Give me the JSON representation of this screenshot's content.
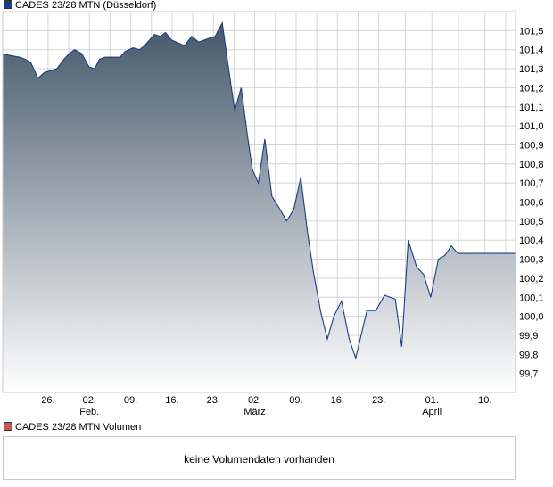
{
  "legend": {
    "series_label": "CADES 23/28 MTN (Düsseldorf)",
    "series_color": "#1a3d8f",
    "volume_label": "CADES 23/28 MTN Volumen",
    "volume_color": "#d45050"
  },
  "volume_panel": {
    "message": "keine Volumendaten vorhanden"
  },
  "chart_data": {
    "type": "area",
    "title": "",
    "xlabel": "",
    "ylabel": "",
    "ylim": [
      99.6,
      101.6
    ],
    "yticks": [
      "99,7",
      "99,8",
      "99,9",
      "100,0",
      "100,1",
      "100,2",
      "100,3",
      "100,4",
      "100,5",
      "100,6",
      "100,7",
      "100,8",
      "100,9",
      "101,0",
      "101,1",
      "101,2",
      "101,3",
      "101,4",
      "101,5"
    ],
    "ytick_values": [
      99.7,
      99.8,
      99.9,
      100.0,
      100.1,
      100.2,
      100.3,
      100.4,
      100.5,
      100.6,
      100.7,
      100.8,
      100.9,
      101.0,
      101.1,
      101.2,
      101.3,
      101.4,
      101.5
    ],
    "xticks": [
      {
        "label": "26.",
        "sub": "",
        "day": 5
      },
      {
        "label": "02.",
        "sub": "Feb.",
        "day": 12
      },
      {
        "label": "09.",
        "sub": "",
        "day": 19
      },
      {
        "label": "16.",
        "sub": "",
        "day": 26
      },
      {
        "label": "23.",
        "sub": "",
        "day": 33
      },
      {
        "label": "02.",
        "sub": "März",
        "day": 40
      },
      {
        "label": "09.",
        "sub": "",
        "day": 47
      },
      {
        "label": "16.",
        "sub": "",
        "day": 54
      },
      {
        "label": "23.",
        "sub": "",
        "day": 61
      },
      {
        "label": "01.",
        "sub": "April",
        "day": 70
      },
      {
        "label": "10.",
        "sub": "",
        "day": 79
      }
    ],
    "grid": true,
    "colors": {
      "line": "#1a3d8f",
      "fill_top": "#44586a",
      "fill_bottom": "#ffffff",
      "grid": "#d4d4d4"
    },
    "series": [
      {
        "x": [
          -2.8,
          -1.5,
          0.2,
          1.1,
          2.1,
          3.3,
          4.4,
          5.5,
          6.5,
          7.7,
          8.6,
          9.5,
          10.7,
          11.9,
          12.9,
          13.7,
          14.6,
          15.9,
          17.2,
          18.0,
          19.4,
          20.5,
          21.3,
          23.0,
          24.0,
          24.9,
          25.9,
          26.8,
          28.1,
          29.3,
          30.5,
          32.3,
          33.3,
          34.5,
          35.4,
          36.6,
          37.7,
          38.8,
          39.6,
          40.6,
          41.7,
          42.9,
          44.3,
          45.4,
          46.6,
          47.8,
          48.9,
          50.0,
          51.2,
          52.3,
          53.4,
          54.7,
          56.0,
          57.1,
          59.0,
          60.5,
          62.0,
          63.8,
          64.9,
          66.0,
          67.4,
          68.6,
          69.8,
          71.1,
          72.2,
          73.3,
          74.4,
          75.6,
          76.7,
          77.9,
          79.0,
          80.2,
          81.4,
          82.6,
          83.7
        ],
        "values": [
          101.38,
          101.37,
          101.36,
          101.35,
          101.33,
          101.25,
          101.28,
          101.29,
          101.3,
          101.35,
          101.38,
          101.4,
          101.38,
          101.31,
          101.3,
          101.35,
          101.36,
          101.36,
          101.36,
          101.39,
          101.41,
          101.4,
          101.42,
          101.48,
          101.47,
          101.49,
          101.45,
          101.44,
          101.42,
          101.47,
          101.44,
          101.46,
          101.47,
          101.54,
          101.34,
          101.08,
          101.2,
          100.94,
          100.77,
          100.7,
          100.93,
          100.63,
          100.56,
          100.5,
          100.56,
          100.73,
          100.45,
          100.22,
          100.02,
          99.88,
          100.0,
          100.08,
          99.88,
          99.78,
          100.03,
          100.03,
          100.11,
          100.09,
          99.84,
          100.4,
          100.26,
          100.22,
          100.1,
          100.3,
          100.32,
          100.37,
          100.33,
          100.33,
          100.33,
          100.33,
          100.33,
          100.33,
          100.33,
          100.33,
          100.33
        ]
      }
    ]
  }
}
